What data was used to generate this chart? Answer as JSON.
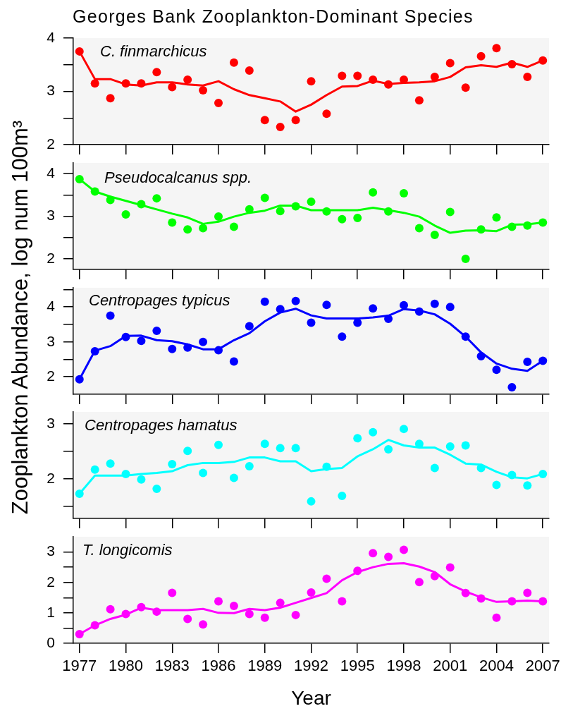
{
  "chart_data": [
    {
      "type": "scatter",
      "title": "Georges Bank Zooplankton-Dominant Species",
      "annotations": [
        "C. finmarchicus"
      ],
      "x": [
        1977,
        1978,
        1979,
        1980,
        1981,
        1982,
        1983,
        1984,
        1985,
        1986,
        1987,
        1988,
        1989,
        1990,
        1991,
        1992,
        1993,
        1994,
        1995,
        1996,
        1997,
        1998,
        1999,
        2000,
        2001,
        2002,
        2003,
        2004,
        2005,
        2006,
        2007
      ],
      "series": [
        {
          "marker": "circle",
          "color": "#ff0000",
          "values": [
            3.75,
            3.15,
            2.87,
            3.15,
            3.15,
            3.36,
            3.08,
            3.22,
            3.02,
            2.78,
            3.54,
            3.39,
            2.46,
            2.33,
            2.46,
            3.19,
            2.58,
            3.29,
            3.29,
            3.22,
            3.13,
            3.22,
            2.83,
            3.27,
            3.53,
            3.07,
            3.66,
            3.81,
            3.51,
            3.27,
            3.58
          ]
        },
        {
          "type": "line",
          "marker": "none",
          "color": "#ff0000",
          "values": [
            3.75,
            3.23,
            3.23,
            3.13,
            3.11,
            3.17,
            3.17,
            3.13,
            3.11,
            3.19,
            3.04,
            2.93,
            2.87,
            2.81,
            2.62,
            2.75,
            2.93,
            3.09,
            3.1,
            3.2,
            3.14,
            3.16,
            3.17,
            3.19,
            3.27,
            3.45,
            3.49,
            3.46,
            3.54,
            3.46,
            3.58
          ]
        }
      ],
      "xlim": [
        1976.6,
        2007.4
      ],
      "xticks": [
        1977,
        1980,
        1983,
        1986,
        1989,
        1992,
        1995,
        1998,
        2001,
        2004,
        2007
      ],
      "ylim": [
        2,
        4
      ],
      "yticks": [
        2,
        {
          "value": 2.5,
          "label": null
        },
        3,
        {
          "value": 3.5,
          "label": null
        },
        4
      ],
      "tick_labels": "y"
    },
    {
      "type": "scatter",
      "annotations": [
        "Pseudocalcanus spp."
      ],
      "x": [
        1977,
        1978,
        1979,
        1980,
        1981,
        1982,
        1983,
        1984,
        1985,
        1986,
        1987,
        1988,
        1989,
        1990,
        1991,
        1992,
        1993,
        1994,
        1995,
        1996,
        1997,
        1998,
        1999,
        2000,
        2001,
        2002,
        2003,
        2004,
        2005,
        2006,
        2007
      ],
      "series": [
        {
          "marker": "circle",
          "color": "#00ff00",
          "values": [
            3.87,
            3.58,
            3.38,
            3.04,
            3.28,
            3.42,
            2.85,
            2.69,
            2.72,
            2.99,
            2.75,
            3.16,
            3.43,
            3.12,
            3.23,
            3.34,
            3.11,
            2.93,
            2.96,
            3.56,
            3.11,
            3.54,
            2.72,
            2.56,
            3.1,
            2.0,
            2.69,
            2.97,
            2.75,
            2.78,
            2.85
          ]
        },
        {
          "type": "line",
          "marker": "none",
          "color": "#00ff00",
          "values": [
            3.87,
            3.58,
            3.46,
            3.36,
            3.26,
            3.16,
            3.06,
            2.97,
            2.82,
            2.87,
            2.99,
            3.08,
            3.13,
            3.25,
            3.25,
            3.14,
            3.14,
            3.14,
            3.14,
            3.2,
            3.14,
            3.08,
            2.99,
            2.78,
            2.61,
            2.66,
            2.67,
            2.65,
            2.8,
            2.81,
            2.85
          ]
        }
      ],
      "xlim": [
        1976.6,
        2007.4
      ],
      "xticks": [
        1977,
        1980,
        1983,
        1986,
        1989,
        1992,
        1995,
        1998,
        2001,
        2004,
        2007
      ],
      "ylim": [
        1.75,
        4.25
      ],
      "yticks": [
        2,
        {
          "value": 2.5,
          "label": null
        },
        3,
        {
          "value": 3.5,
          "label": null
        },
        4
      ],
      "tick_labels": "y"
    },
    {
      "type": "scatter",
      "ylabel": "Zooplankton Abundance, log num 100m³",
      "annotations": [
        "Centropages typicus"
      ],
      "x": [
        1977,
        1978,
        1979,
        1980,
        1981,
        1982,
        1983,
        1984,
        1985,
        1986,
        1987,
        1988,
        1989,
        1990,
        1991,
        1992,
        1993,
        1994,
        1995,
        1996,
        1997,
        1998,
        1999,
        2000,
        2001,
        2002,
        2003,
        2004,
        2005,
        2006,
        2007
      ],
      "series": [
        {
          "marker": "circle",
          "color": "#0000ff",
          "values": [
            1.93,
            2.73,
            3.75,
            3.14,
            3.03,
            3.32,
            2.8,
            2.84,
            3.0,
            2.76,
            2.44,
            3.45,
            4.15,
            3.94,
            4.17,
            3.55,
            4.06,
            3.15,
            3.55,
            3.96,
            3.66,
            4.05,
            3.87,
            4.09,
            4.0,
            3.15,
            2.59,
            2.2,
            1.7,
            2.43,
            2.46
          ]
        },
        {
          "type": "line",
          "marker": "none",
          "color": "#0000ff",
          "values": [
            1.93,
            2.75,
            2.88,
            3.17,
            3.18,
            3.05,
            3.02,
            2.93,
            2.79,
            2.79,
            3.05,
            3.25,
            3.59,
            3.84,
            3.95,
            3.76,
            3.67,
            3.67,
            3.67,
            3.7,
            3.75,
            3.94,
            3.9,
            3.79,
            3.52,
            3.15,
            2.7,
            2.38,
            2.23,
            2.17,
            2.46
          ]
        }
      ],
      "xlim": [
        1976.6,
        2007.4
      ],
      "xticks": [
        1977,
        1980,
        1983,
        1986,
        1989,
        1992,
        1995,
        1998,
        2001,
        2004,
        2007
      ],
      "ylim": [
        1.5,
        4.55
      ],
      "yticks": [
        2,
        {
          "value": 2.5,
          "label": null
        },
        3,
        {
          "value": 3.5,
          "label": null
        },
        4,
        {
          "value": 4.5,
          "label": null
        }
      ],
      "tick_labels": "y"
    },
    {
      "type": "scatter",
      "annotations": [
        "Centropages hamatus"
      ],
      "x": [
        1977,
        1978,
        1979,
        1980,
        1981,
        1982,
        1983,
        1984,
        1985,
        1986,
        1987,
        1988,
        1989,
        1990,
        1991,
        1992,
        1993,
        1994,
        1995,
        1996,
        1997,
        1998,
        1999,
        2000,
        2001,
        2002,
        2003,
        2004,
        2005,
        2006,
        2007
      ],
      "series": [
        {
          "marker": "circle",
          "color": "#00ffff",
          "values": [
            1.73,
            2.17,
            2.28,
            2.09,
            1.99,
            1.82,
            2.27,
            2.51,
            2.11,
            2.62,
            2.02,
            2.23,
            2.64,
            2.56,
            2.56,
            1.59,
            2.22,
            1.69,
            2.74,
            2.85,
            2.54,
            2.91,
            2.64,
            2.2,
            2.59,
            2.61,
            2.2,
            1.89,
            2.07,
            1.88,
            2.09
          ]
        },
        {
          "type": "line",
          "marker": "none",
          "color": "#00ffff",
          "values": [
            1.73,
            2.06,
            2.06,
            2.06,
            2.09,
            2.11,
            2.14,
            2.25,
            2.29,
            2.29,
            2.31,
            2.39,
            2.39,
            2.32,
            2.32,
            2.14,
            2.18,
            2.2,
            2.41,
            2.54,
            2.71,
            2.61,
            2.57,
            2.57,
            2.44,
            2.28,
            2.26,
            2.13,
            2.03,
            2.01,
            2.09
          ]
        }
      ],
      "xlim": [
        1976.6,
        2007.4
      ],
      "xticks": [
        1977,
        1980,
        1983,
        1986,
        1989,
        1992,
        1995,
        1998,
        2001,
        2004,
        2007
      ],
      "ylim": [
        1.28,
        3.22
      ],
      "yticks": [
        {
          "value": 1.5,
          "label": null
        },
        2,
        {
          "value": 2.5,
          "label": null
        },
        3
      ],
      "tick_labels": "y"
    },
    {
      "type": "scatter",
      "xlabel": "Year",
      "annotations": [
        "T. longicomis"
      ],
      "x": [
        1977,
        1978,
        1979,
        1980,
        1981,
        1982,
        1983,
        1984,
        1985,
        1986,
        1987,
        1988,
        1989,
        1990,
        1991,
        1992,
        1993,
        1994,
        1995,
        1996,
        1997,
        1998,
        1999,
        2000,
        2001,
        2002,
        2003,
        2004,
        2005,
        2006,
        2007
      ],
      "series": [
        {
          "marker": "circle",
          "color": "#ff00ff",
          "values": [
            0.3,
            0.59,
            1.12,
            0.96,
            1.19,
            1.04,
            1.66,
            0.8,
            0.62,
            1.38,
            1.23,
            0.96,
            0.84,
            1.33,
            0.93,
            1.67,
            2.12,
            1.38,
            2.38,
            2.96,
            2.84,
            3.07,
            2.01,
            2.21,
            2.49,
            1.65,
            1.47,
            0.84,
            1.38,
            1.66,
            1.38
          ]
        },
        {
          "type": "line",
          "marker": "none",
          "color": "#ff00ff",
          "values": [
            0.3,
            0.59,
            0.8,
            0.94,
            1.17,
            1.09,
            1.09,
            1.09,
            1.13,
            1.0,
            0.99,
            1.13,
            1.09,
            1.17,
            1.33,
            1.49,
            1.65,
            2.07,
            2.34,
            2.5,
            2.61,
            2.63,
            2.52,
            2.34,
            1.94,
            1.7,
            1.51,
            1.36,
            1.38,
            1.4,
            1.38
          ]
        }
      ],
      "xlim": [
        1976.6,
        2007.4
      ],
      "xticks": [
        1977,
        1980,
        1983,
        1986,
        1989,
        1992,
        1995,
        1998,
        2001,
        2004,
        2007
      ],
      "ylim": [
        0,
        3.5
      ],
      "yticks": [
        0,
        {
          "value": 0.5,
          "label": null
        },
        1,
        {
          "value": 1.5,
          "label": null
        },
        2,
        {
          "value": 2.5,
          "label": null
        },
        3
      ]
    }
  ]
}
